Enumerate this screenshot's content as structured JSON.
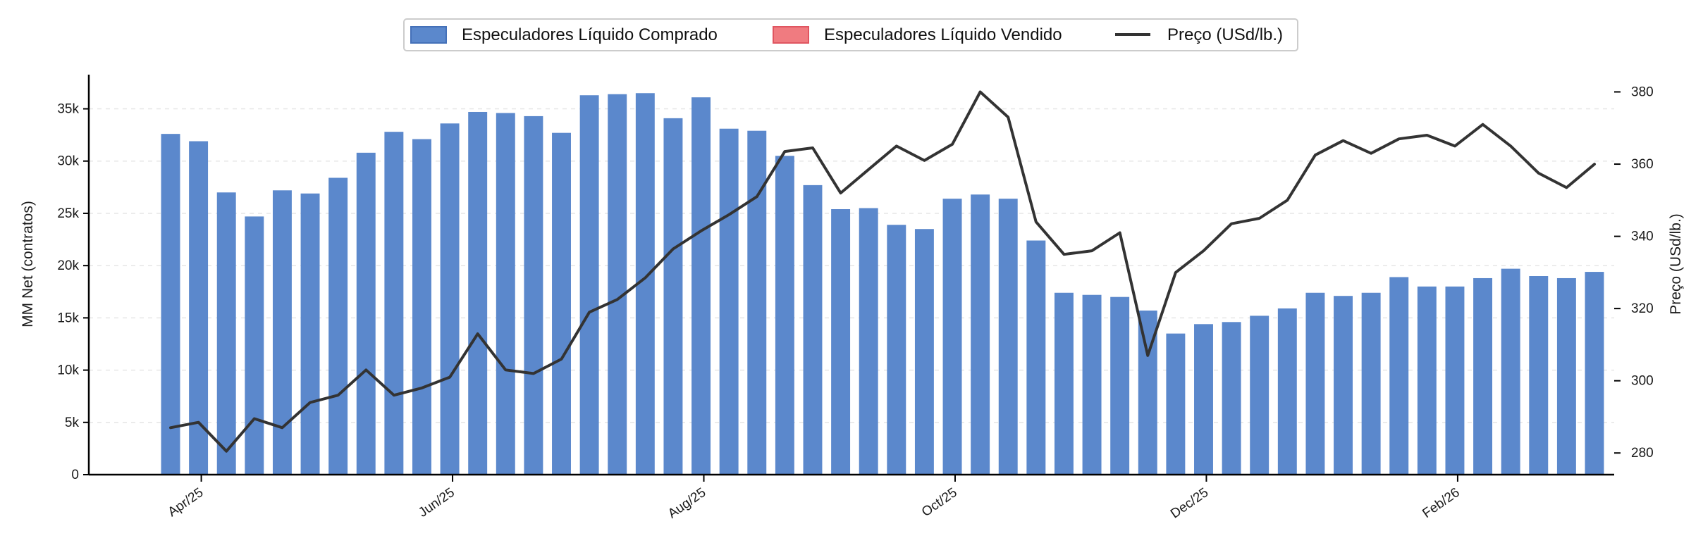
{
  "chart_data": {
    "type": "bar",
    "legend": {
      "placement": "top-center",
      "entries": [
        {
          "label": "Especuladores Líquido Comprado",
          "kind": "bar",
          "color": "#5b88cc"
        },
        {
          "label": "Especuladores Líquido Vendido",
          "kind": "bar",
          "color": "#f07b80"
        },
        {
          "label": "Preço (USd/lb.)",
          "kind": "line",
          "color": "#333333"
        }
      ]
    },
    "x_tick_labels": [
      "Apr/25",
      "Jun/25",
      "Aug/25",
      "Oct/25",
      "Dec/25",
      "Feb/26"
    ],
    "x_tick_after_bar_index": [
      1,
      10,
      19,
      28,
      37,
      46
    ],
    "y_left": {
      "label": "MM Net (contratos)",
      "range": [
        0,
        38000
      ],
      "ticks": [
        0,
        5000,
        10000,
        15000,
        20000,
        25000,
        30000,
        35000
      ],
      "tick_labels": [
        "0",
        "5k",
        "10k",
        "15k",
        "20k",
        "25k",
        "30k",
        "35k"
      ],
      "grid": true
    },
    "y_right": {
      "label": "Preço (USd/lb.)",
      "range": [
        274,
        384
      ],
      "ticks": [
        280,
        300,
        320,
        340,
        360,
        380
      ],
      "tick_labels": [
        "280",
        "300",
        "320",
        "340",
        "360",
        "380"
      ]
    },
    "series": [
      {
        "name": "Especuladores Líquido Comprado",
        "type": "bar",
        "axis": "left",
        "color": "#5b88cc",
        "values": [
          32600,
          31900,
          27000,
          24700,
          27200,
          26900,
          28400,
          30800,
          32800,
          32100,
          33600,
          34700,
          34600,
          34300,
          32700,
          36300,
          36400,
          36500,
          34100,
          36100,
          33100,
          32900,
          30500,
          27700,
          25400,
          25500,
          23900,
          23500,
          26400,
          26800,
          26400,
          22400,
          17400,
          17200,
          17000,
          15700,
          13500,
          14400,
          14600,
          15200,
          15900,
          17400,
          17100,
          17400,
          18900,
          18000,
          18000,
          18800,
          19700,
          19000,
          18800,
          19400
        ]
      },
      {
        "name": "Especuladores Líquido Vendido",
        "type": "bar",
        "axis": "left",
        "color": "#f07b80",
        "values": []
      },
      {
        "name": "Preço (USd/lb.)",
        "type": "line",
        "axis": "right",
        "color": "#333333",
        "values": [
          287,
          288.5,
          280.5,
          289.5,
          287,
          294,
          296,
          303,
          296,
          298,
          301,
          313,
          303,
          302,
          306,
          319,
          322.5,
          328.5,
          336.5,
          341.5,
          346,
          351,
          363.5,
          364.5,
          352,
          358.5,
          365,
          361,
          365.5,
          380,
          373,
          344,
          335,
          336,
          341,
          307,
          330,
          336,
          343.5,
          345,
          350,
          362.5,
          366.5,
          363,
          367,
          368,
          365,
          371,
          365,
          357.5,
          353.5,
          360
        ]
      }
    ]
  }
}
